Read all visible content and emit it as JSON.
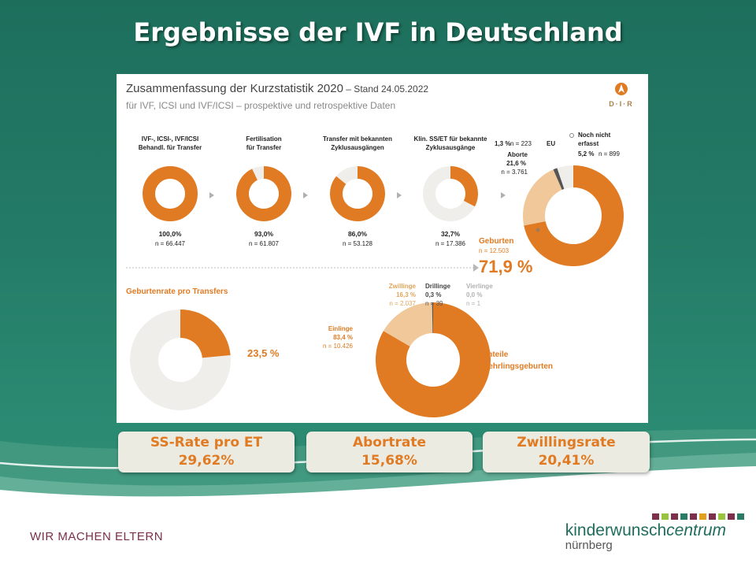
{
  "slide": {
    "title": "Ergebnisse der IVF in Deutschland",
    "tagline": "WIR MACHEN ELTERN",
    "brand_main_plain": "kinderwunsch",
    "brand_main_italic": "centrum",
    "brand_sub": "nürnberg",
    "brand_colors": [
      "#7a2f4a",
      "#9bc23c",
      "#7a2f4a",
      "#2a7a66",
      "#7a2f4a",
      "#e0a020",
      "#7a2f4a",
      "#9bc23c",
      "#7a2f4a",
      "#2a7a66"
    ],
    "colors": {
      "orange": "#e07b23",
      "light_orange": "#f1c89a",
      "grey": "#efeeea",
      "dark_grey": "#555555",
      "bg": "#237a66"
    }
  },
  "panel": {
    "title": "Zusammenfassung der Kurzstatistik 2020",
    "stand": " – Stand 24.05.2022",
    "subtitle": "für IVF, ICSI und IVF/ICSI – prospektive und retrospektive Daten",
    "logo_text": "D·I·R"
  },
  "stats": [
    {
      "label": "SS-Rate pro ET",
      "value": "29,62%"
    },
    {
      "label": "Abortrate",
      "value": "15,68%"
    },
    {
      "label": "Zwillingsrate",
      "value": "20,41%"
    }
  ],
  "chart_data": [
    {
      "type": "pie",
      "title": "IVF-, ICSI-, IVF/ICSI Behandl. für Transfer",
      "title_lines": [
        "IVF-, ICSI-, IVF/ICSI",
        "Behandl. für Transfer"
      ],
      "value": 100.0,
      "value_label": "100,0%",
      "n_label": "n = 66.447"
    },
    {
      "type": "pie",
      "title": "Fertilisation für Transfer",
      "title_lines": [
        "Fertilisation",
        "für Transfer"
      ],
      "value": 93.0,
      "value_label": "93,0%",
      "n_label": "n = 61.807"
    },
    {
      "type": "pie",
      "title": "Transfer mit bekannten Zyklusausgängen",
      "title_lines": [
        "Transfer mit bekannten",
        "Zyklusausgängen"
      ],
      "value": 86.0,
      "value_label": "86,0%",
      "n_label": "n = 53.128"
    },
    {
      "type": "pie",
      "title": "Klin. SS/ET für bekannte Zyklusausgänge",
      "title_lines": [
        "Klin. SS/ET für bekannte",
        "Zyklusausgänge"
      ],
      "value": 32.7,
      "value_label": "32,7%",
      "n_label": "n = 17.386"
    },
    {
      "type": "pie",
      "slices": [
        {
          "name": "Geburten",
          "value": 71.9,
          "label": "71,9 %",
          "n": "n = 12.503"
        },
        {
          "name": "Noch nicht erfasst",
          "name_lines": [
            "Noch nicht",
            "erfasst"
          ],
          "value": 5.2,
          "label": "5,2 %",
          "n": "n = 899"
        },
        {
          "name": "EU",
          "value": 1.3,
          "label": "1,3 %",
          "n": "n = 223"
        },
        {
          "name": "Aborte",
          "value": 21.6,
          "label": "21,6 %",
          "n": "n = 3.761"
        }
      ]
    },
    {
      "type": "pie",
      "title": "Geburtenrate pro Transfers",
      "value": 23.5,
      "value_label": "23,5 %"
    },
    {
      "type": "pie",
      "title": "Anteile Mehrlingsgeburten",
      "title_lines": [
        "Anteile",
        "Mehrlingsgeburten"
      ],
      "slices": [
        {
          "name": "Einlinge",
          "value": 83.4,
          "label": "83,4 %",
          "n": "n = 10.426"
        },
        {
          "name": "Zwillinge",
          "value": 16.3,
          "label": "16,3 %",
          "n": "n = 2.037"
        },
        {
          "name": "Drillinge",
          "value": 0.3,
          "label": "0,3 %",
          "n": "n = 39"
        },
        {
          "name": "Vierlinge",
          "value": 0.0,
          "label": "0,0 %",
          "n": "n = 1"
        }
      ]
    }
  ]
}
